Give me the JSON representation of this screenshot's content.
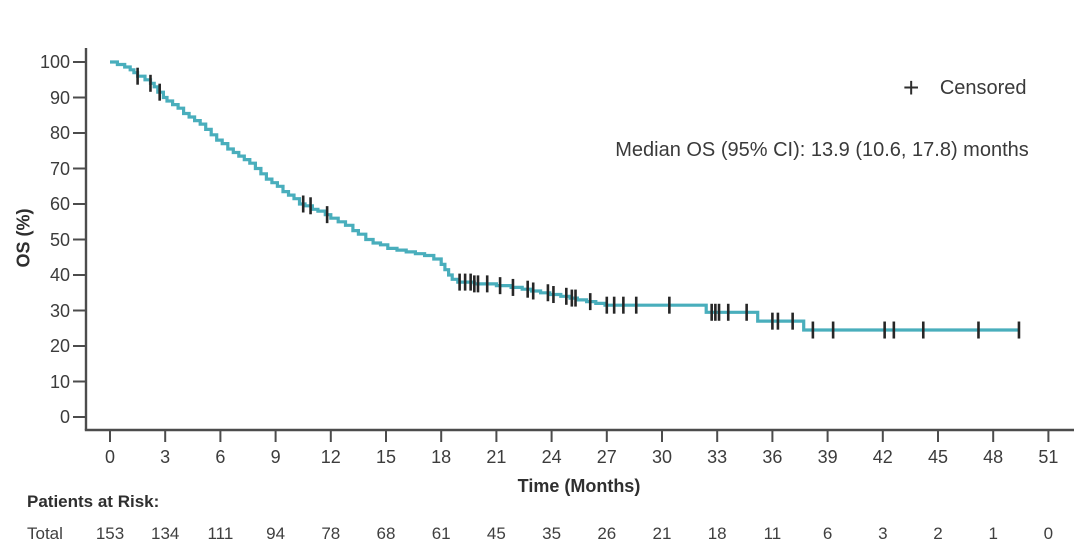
{
  "figure": {
    "background": "#ffffff",
    "legend": {
      "symbol": "+",
      "label": "Censored"
    },
    "annotation": {
      "text": "Median OS (95% CI): 13.9 (10.6, 17.8) months"
    },
    "risk_table": {
      "header": "Patients at Risk:",
      "row_label": "Total"
    },
    "colors": {
      "curve": "#49aebc",
      "axis": "#4c4c4c",
      "tick_text": "#3c3c3c",
      "censor": "#262626"
    }
  },
  "chart_data": {
    "type": "line",
    "subtype": "kaplan_meier_step",
    "title": "",
    "xlabel": "Time (Months)",
    "ylabel": "OS (%)",
    "xlim": [
      0,
      51
    ],
    "ylim": [
      0,
      100
    ],
    "x_ticks": [
      0,
      3,
      6,
      9,
      12,
      15,
      18,
      21,
      24,
      27,
      30,
      33,
      36,
      39,
      42,
      45,
      48,
      51
    ],
    "y_ticks": [
      100,
      90,
      80,
      70,
      60,
      50,
      40,
      30,
      20,
      10,
      0
    ],
    "grid": false,
    "legend_position": "top-right",
    "median_os_months": 13.9,
    "median_os_ci95": [
      10.6,
      17.8
    ],
    "series": [
      {
        "name": "Total",
        "color": "#49aebc",
        "step_points": [
          [
            0,
            100
          ],
          [
            0.4,
            99.3
          ],
          [
            0.8,
            98.6
          ],
          [
            1.1,
            97.8
          ],
          [
            1.3,
            97
          ],
          [
            1.5,
            96
          ],
          [
            1.9,
            95
          ],
          [
            2.2,
            94
          ],
          [
            2.4,
            93
          ],
          [
            2.6,
            91.5
          ],
          [
            2.9,
            90
          ],
          [
            3.1,
            89
          ],
          [
            3.4,
            88
          ],
          [
            3.7,
            87
          ],
          [
            4.0,
            85.5
          ],
          [
            4.3,
            84.5
          ],
          [
            4.6,
            83.5
          ],
          [
            4.9,
            82.5
          ],
          [
            5.2,
            81
          ],
          [
            5.5,
            79.5
          ],
          [
            5.8,
            78
          ],
          [
            6.1,
            77
          ],
          [
            6.4,
            75.5
          ],
          [
            6.7,
            74.5
          ],
          [
            7.0,
            73.5
          ],
          [
            7.3,
            72.5
          ],
          [
            7.6,
            71.5
          ],
          [
            7.9,
            70
          ],
          [
            8.2,
            68.5
          ],
          [
            8.5,
            67
          ],
          [
            8.8,
            66
          ],
          [
            9.1,
            65
          ],
          [
            9.4,
            63.5
          ],
          [
            9.7,
            62.5
          ],
          [
            10.0,
            61.5
          ],
          [
            10.3,
            60
          ],
          [
            10.6,
            59.5
          ],
          [
            11.0,
            58.5
          ],
          [
            11.3,
            58
          ],
          [
            11.7,
            57
          ],
          [
            12.0,
            56
          ],
          [
            12.4,
            55
          ],
          [
            12.8,
            54
          ],
          [
            13.2,
            52.5
          ],
          [
            13.5,
            51.5
          ],
          [
            13.9,
            50
          ],
          [
            14.3,
            49
          ],
          [
            14.7,
            48.5
          ],
          [
            15.1,
            47.5
          ],
          [
            15.6,
            47
          ],
          [
            16.1,
            46.5
          ],
          [
            16.6,
            46
          ],
          [
            17.1,
            45.5
          ],
          [
            17.6,
            44.5
          ],
          [
            18.0,
            43
          ],
          [
            18.2,
            41.5
          ],
          [
            18.4,
            40
          ],
          [
            18.6,
            38.8
          ],
          [
            18.9,
            38
          ],
          [
            19.8,
            37.5
          ],
          [
            21.0,
            37
          ],
          [
            21.8,
            36.5
          ],
          [
            22.4,
            36
          ],
          [
            22.9,
            35.5
          ],
          [
            23.4,
            35
          ],
          [
            23.9,
            34.5
          ],
          [
            24.5,
            34
          ],
          [
            25.0,
            33.5
          ],
          [
            25.4,
            33
          ],
          [
            25.9,
            32.5
          ],
          [
            26.4,
            32
          ],
          [
            26.9,
            31.5
          ],
          [
            32.4,
            29.5
          ],
          [
            35.2,
            27
          ],
          [
            37.7,
            24.5
          ],
          [
            49.4,
            24.5
          ]
        ],
        "censor_times": [
          1.5,
          2.2,
          2.7,
          10.5,
          10.9,
          11.8,
          19.0,
          19.3,
          19.6,
          19.8,
          20.0,
          20.5,
          21.2,
          21.9,
          22.7,
          23.0,
          23.8,
          24.1,
          24.8,
          25.1,
          25.3,
          26.1,
          27.0,
          27.4,
          27.9,
          28.6,
          30.4,
          32.7,
          32.9,
          33.1,
          33.6,
          34.6,
          36.0,
          36.3,
          37.1,
          38.2,
          39.3,
          42.1,
          42.6,
          44.2,
          47.2,
          49.4
        ]
      }
    ],
    "at_risk": {
      "row_label": "Total",
      "times": [
        0,
        3,
        6,
        9,
        12,
        15,
        18,
        21,
        24,
        27,
        30,
        33,
        36,
        39,
        42,
        45,
        48,
        51
      ],
      "counts": [
        153,
        134,
        111,
        94,
        78,
        68,
        61,
        45,
        35,
        26,
        21,
        18,
        11,
        6,
        3,
        2,
        1,
        0
      ]
    }
  }
}
